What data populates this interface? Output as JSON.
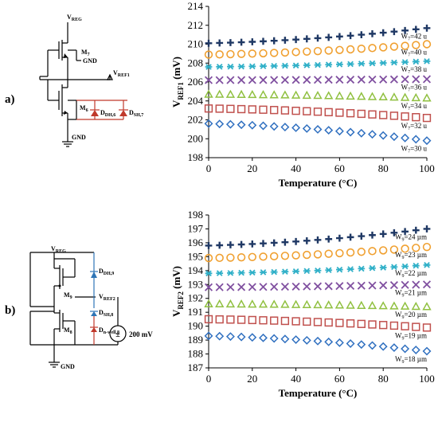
{
  "panels": [
    {
      "label": "a)",
      "schematic": {
        "node_top": "V",
        "node_top_sub": "REG",
        "m_top": "M",
        "m_top_sub": "7",
        "m_bot": "M",
        "m_bot_sub": "6",
        "gnd_side": "GND",
        "gnd_bottom": "GND",
        "vref": "V",
        "vref_sub": "REF1",
        "diode1": "D",
        "diode1_sub": "DH,6",
        "diode2": "D",
        "diode2_sub": "SH,7"
      }
    },
    {
      "label": "b)",
      "schematic": {
        "node_top": "V",
        "node_top_sub": "REG",
        "m_top": "M",
        "m_top_sub": "9",
        "m_bot": "M",
        "m_bot_sub": "8",
        "gnd_bottom": "GND",
        "vref": "V",
        "vref_sub": "REF2",
        "diode1": "D",
        "diode1_sub": "DH,9",
        "diode2": "D",
        "diode2_sub": "SH,8",
        "diode3": "D",
        "diode3_sub": "n-well,8",
        "source": "200 mV"
      }
    }
  ],
  "chart_data": [
    {
      "type": "scatter",
      "xlabel": "Temperature (°C)",
      "ylabel_main": "V",
      "ylabel_sub": "REF1",
      "ylabel_unit": " (mV)",
      "xlim": [
        0,
        100
      ],
      "ylim": [
        198,
        214
      ],
      "xticks": [
        0,
        20,
        40,
        60,
        80,
        100
      ],
      "yticks": [
        198,
        200,
        202,
        204,
        206,
        208,
        210,
        212,
        214
      ],
      "grid": false,
      "series": [
        {
          "name": "W7=42 u",
          "label_main": "W",
          "label_sub": "7",
          "label_rest": "=42 u",
          "marker": "plus",
          "color": "#1f3864",
          "y0": 210.1,
          "y1": 211.7
        },
        {
          "name": "W7=40 u",
          "label_main": "W",
          "label_sub": "7",
          "label_rest": "=40 u",
          "marker": "circle",
          "color": "#f0a030",
          "y0": 208.9,
          "y1": 210.0
        },
        {
          "name": "W7=38 u",
          "label_main": "W",
          "label_sub": "7",
          "label_rest": "=38 u",
          "marker": "asterisk",
          "color": "#30b0c8",
          "y0": 207.6,
          "y1": 208.2
        },
        {
          "name": "W7=36 u",
          "label_main": "W",
          "label_sub": "7",
          "label_rest": "=36 u",
          "marker": "x",
          "color": "#8050a0",
          "y0": 206.2,
          "y1": 206.3
        },
        {
          "name": "W7=34 u",
          "label_main": "W",
          "label_sub": "7",
          "label_rest": "=34 u",
          "marker": "triangle",
          "color": "#90c040",
          "y0": 204.7,
          "y1": 204.3
        },
        {
          "name": "W7=32 u",
          "label_main": "W",
          "label_sub": "7",
          "label_rest": "=32 u",
          "marker": "square",
          "color": "#c0504d",
          "y0": 203.2,
          "y1": 202.2
        },
        {
          "name": "W7=30 u",
          "label_main": "W",
          "label_sub": "7",
          "label_rest": "=30 u",
          "marker": "diamond",
          "color": "#3070c0",
          "y0": 201.6,
          "y1": 199.8
        }
      ]
    },
    {
      "type": "scatter",
      "xlabel": "Temperature (°C)",
      "ylabel_main": "V",
      "ylabel_sub": "REF2",
      "ylabel_unit": " (mV)",
      "xlim": [
        0,
        100
      ],
      "ylim": [
        187,
        198
      ],
      "xticks": [
        0,
        20,
        40,
        60,
        80,
        100
      ],
      "yticks": [
        187,
        188,
        189,
        190,
        191,
        192,
        193,
        194,
        195,
        196,
        197,
        198
      ],
      "grid": false,
      "series": [
        {
          "name": "W9=24 µm",
          "label_main": "W",
          "label_sub": "9",
          "label_rest": "=24 µm",
          "marker": "plus",
          "color": "#1f3864",
          "y0": 195.8,
          "y1": 197.0
        },
        {
          "name": "W9=23 µm",
          "label_main": "W",
          "label_sub": "9",
          "label_rest": "=23 µm",
          "marker": "circle",
          "color": "#f0a030",
          "y0": 194.9,
          "y1": 195.7
        },
        {
          "name": "W9=22 µm",
          "label_main": "W",
          "label_sub": "9",
          "label_rest": "=22 µm",
          "marker": "asterisk",
          "color": "#30b0c8",
          "y0": 193.8,
          "y1": 194.4
        },
        {
          "name": "W9=21 µm",
          "label_main": "W",
          "label_sub": "9",
          "label_rest": "=21 µm",
          "marker": "x",
          "color": "#8050a0",
          "y0": 192.8,
          "y1": 193.0
        },
        {
          "name": "W9=20 µm",
          "label_main": "W",
          "label_sub": "9",
          "label_rest": "=20 µm",
          "marker": "triangle",
          "color": "#90c040",
          "y0": 191.6,
          "y1": 191.4
        },
        {
          "name": "W9=19 µm",
          "label_main": "W",
          "label_sub": "9",
          "label_rest": "=19 µm",
          "marker": "square",
          "color": "#c0504d",
          "y0": 190.5,
          "y1": 189.9
        },
        {
          "name": "W9=18 µm",
          "label_main": "W",
          "label_sub": "9",
          "label_rest": "=18 µm",
          "marker": "diamond",
          "color": "#3070c0",
          "y0": 189.3,
          "y1": 188.2
        }
      ]
    }
  ]
}
